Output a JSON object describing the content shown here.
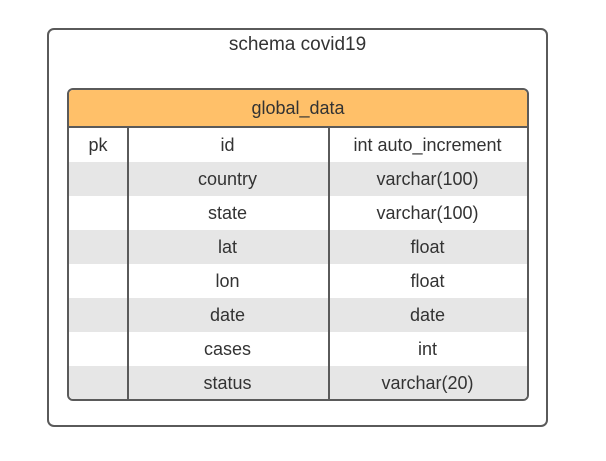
{
  "schema": {
    "title": "schema covid19"
  },
  "table": {
    "name": "global_data",
    "rows": [
      {
        "key": "pk",
        "name": "id",
        "type": "int auto_increment"
      },
      {
        "key": "",
        "name": "country",
        "type": "varchar(100)"
      },
      {
        "key": "",
        "name": "state",
        "type": "varchar(100)"
      },
      {
        "key": "",
        "name": "lat",
        "type": "float"
      },
      {
        "key": "",
        "name": "lon",
        "type": "float"
      },
      {
        "key": "",
        "name": "date",
        "type": "date"
      },
      {
        "key": "",
        "name": "cases",
        "type": "int"
      },
      {
        "key": "",
        "name": "status",
        "type": "varchar(20)"
      }
    ]
  },
  "colors": {
    "header_fill": "#ffc069",
    "row_shade": "#e6e6e6",
    "border": "#5a5a5a"
  }
}
